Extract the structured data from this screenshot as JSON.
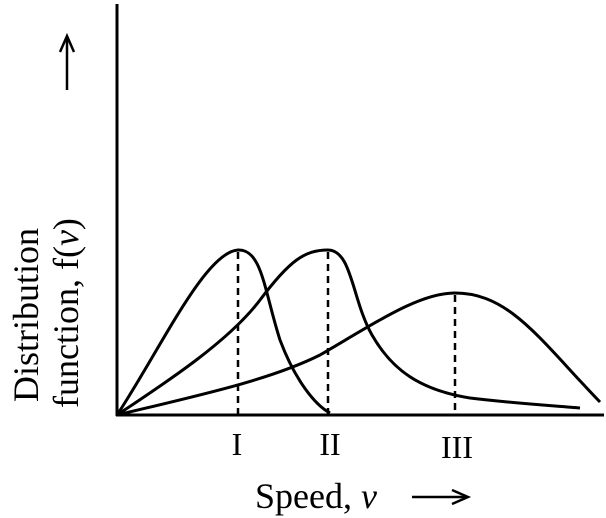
{
  "x_label": {
    "text": "Speed, ",
    "variable": "v"
  },
  "y_label": {
    "line1": "Distribution",
    "line2": "function, f(",
    "variable": "v",
    "close": ")"
  },
  "curves": [
    {
      "label": "I"
    },
    {
      "label": "II"
    },
    {
      "label": "III"
    }
  ]
}
